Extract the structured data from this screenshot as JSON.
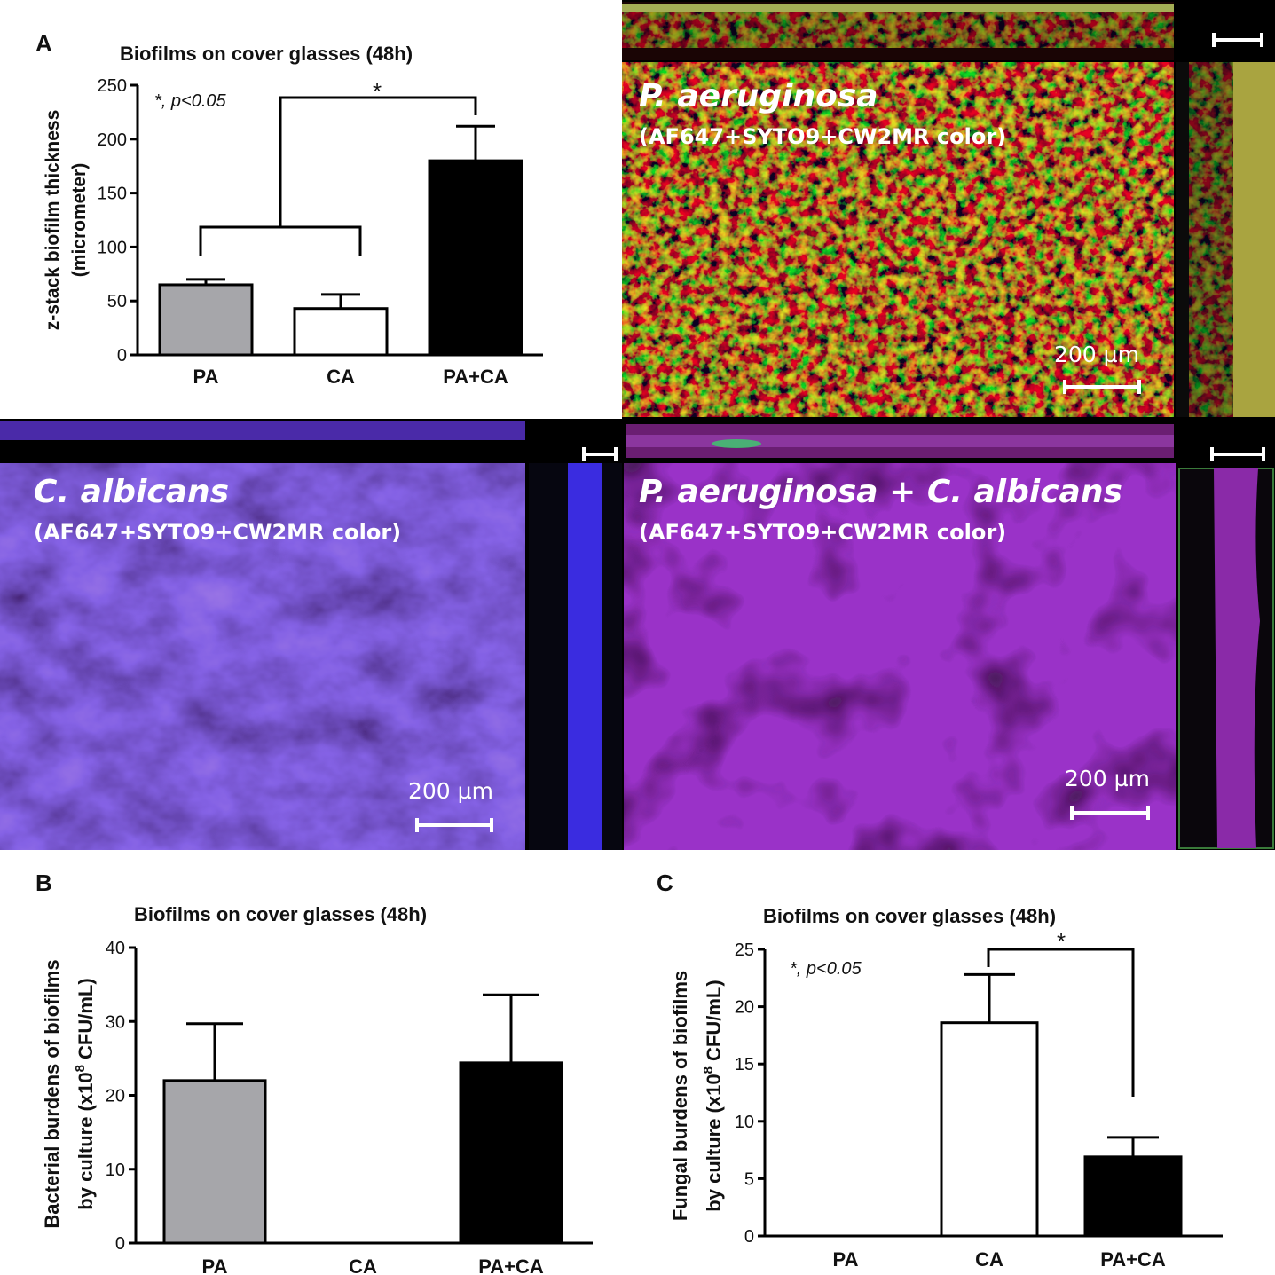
{
  "panel_letters": {
    "a": "A",
    "b": "B",
    "c": "C"
  },
  "stat_note": "*, p<0.05",
  "sig_star": "*",
  "colors": {
    "PA": "#a6a6aa",
    "CA": "#ffffff",
    "PA+CA": "#000000"
  },
  "chart_data": [
    {
      "panel": "A",
      "type": "bar",
      "title": "Biofilms on cover glasses (48h)",
      "ylabel_line1": "z-stack biofilm thickness",
      "ylabel_line2": "(micrometer)",
      "categories": [
        "PA",
        "CA",
        "PA+CA"
      ],
      "values": [
        65,
        43,
        180
      ],
      "errors": [
        5,
        13,
        32
      ],
      "ylim": [
        0,
        250
      ],
      "yticks": [
        0,
        50,
        100,
        150,
        200,
        250
      ],
      "significance": "PA,CA vs PA+CA: p<0.05"
    },
    {
      "panel": "B",
      "type": "bar",
      "title": "Biofilms on cover glasses (48h)",
      "ylabel_line1": "Bacterial burdens of biofilms",
      "ylabel_line2": "by culture (x10",
      "ylabel_sup": "8",
      "ylabel_tail": " CFU/mL)",
      "categories": [
        "PA",
        "CA",
        "PA+CA"
      ],
      "values": [
        22,
        0,
        24.4
      ],
      "errors": [
        7.7,
        0,
        9.2
      ],
      "ylim": [
        0,
        40
      ],
      "yticks": [
        0,
        10,
        20,
        30,
        40
      ]
    },
    {
      "panel": "C",
      "type": "bar",
      "title": "Biofilms on cover glasses (48h)",
      "ylabel_line1": "Fungal burdens of biofilms",
      "ylabel_line2": "by culture (x10",
      "ylabel_sup": "8",
      "ylabel_tail": " CFU/mL)",
      "categories": [
        "PA",
        "CA",
        "PA+CA"
      ],
      "values": [
        0,
        18.6,
        6.9
      ],
      "errors": [
        0,
        4.2,
        1.7
      ],
      "ylim": [
        0,
        25
      ],
      "yticks": [
        0,
        5,
        10,
        15,
        20,
        25
      ],
      "significance": "CA vs PA+CA: p<0.05"
    }
  ],
  "micrographs": [
    {
      "id": "pa",
      "title": "P. aeruginosa",
      "subtitle": "(AF647+SYTO9+CW2MR color)",
      "scale": "200 µm"
    },
    {
      "id": "ca",
      "title": "C. albicans",
      "subtitle": "(AF647+SYTO9+CW2MR color)",
      "scale": "200 µm"
    },
    {
      "id": "paca",
      "title": "P. aeruginosa + C. albicans",
      "subtitle": "(AF647+SYTO9+CW2MR color)",
      "scale": "200 µm"
    }
  ]
}
